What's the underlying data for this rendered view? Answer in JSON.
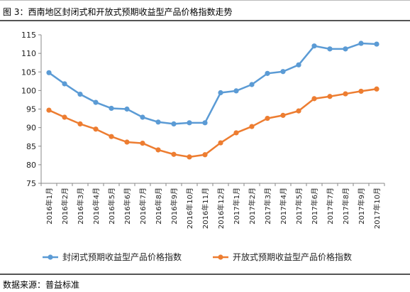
{
  "header": {
    "title": "图 3：西南地区封闭式和开放式预期收益型产品价格指数走势"
  },
  "footer": {
    "source": "数据来源：普益标准"
  },
  "chart_data": {
    "type": "line",
    "title": "图 3：西南地区封闭式和开放式预期收益型产品价格指数走势",
    "xlabel": "",
    "ylabel": "",
    "ylim": [
      75,
      115
    ],
    "yticks": [
      75,
      80,
      85,
      90,
      95,
      100,
      105,
      110,
      115
    ],
    "grid": false,
    "legend_position": "bottom",
    "categories": [
      "2016年1月",
      "2016年2月",
      "2016年3月",
      "2016年4月",
      "2016年5月",
      "2016年6月",
      "2016年7月",
      "2016年8月",
      "2016年9月",
      "2016年10月",
      "2016年11月",
      "2016年12月",
      "2017年1月",
      "2017年2月",
      "2017年3月",
      "2017年4月",
      "2017年5月",
      "2017年6月",
      "2017年7月",
      "2017年8月",
      "2017年9月",
      "2017年10月"
    ],
    "series": [
      {
        "name": "封闭式预期收益型产品价格指数",
        "color": "#5b9bd5",
        "values": [
          104.8,
          101.8,
          99.0,
          96.8,
          95.2,
          95.0,
          92.8,
          91.5,
          91.0,
          91.3,
          91.3,
          99.4,
          99.9,
          101.6,
          104.6,
          105.1,
          106.9,
          112.0,
          111.2,
          111.2,
          112.7,
          112.5
        ]
      },
      {
        "name": "开放式预期收益型产品价格指数",
        "color": "#ed7d31",
        "values": [
          94.7,
          92.8,
          91.0,
          89.6,
          87.6,
          86.1,
          85.8,
          84.0,
          82.8,
          82.1,
          82.7,
          85.9,
          88.6,
          90.3,
          92.5,
          93.3,
          94.5,
          97.8,
          98.4,
          99.1,
          99.8,
          100.4
        ]
      }
    ]
  }
}
